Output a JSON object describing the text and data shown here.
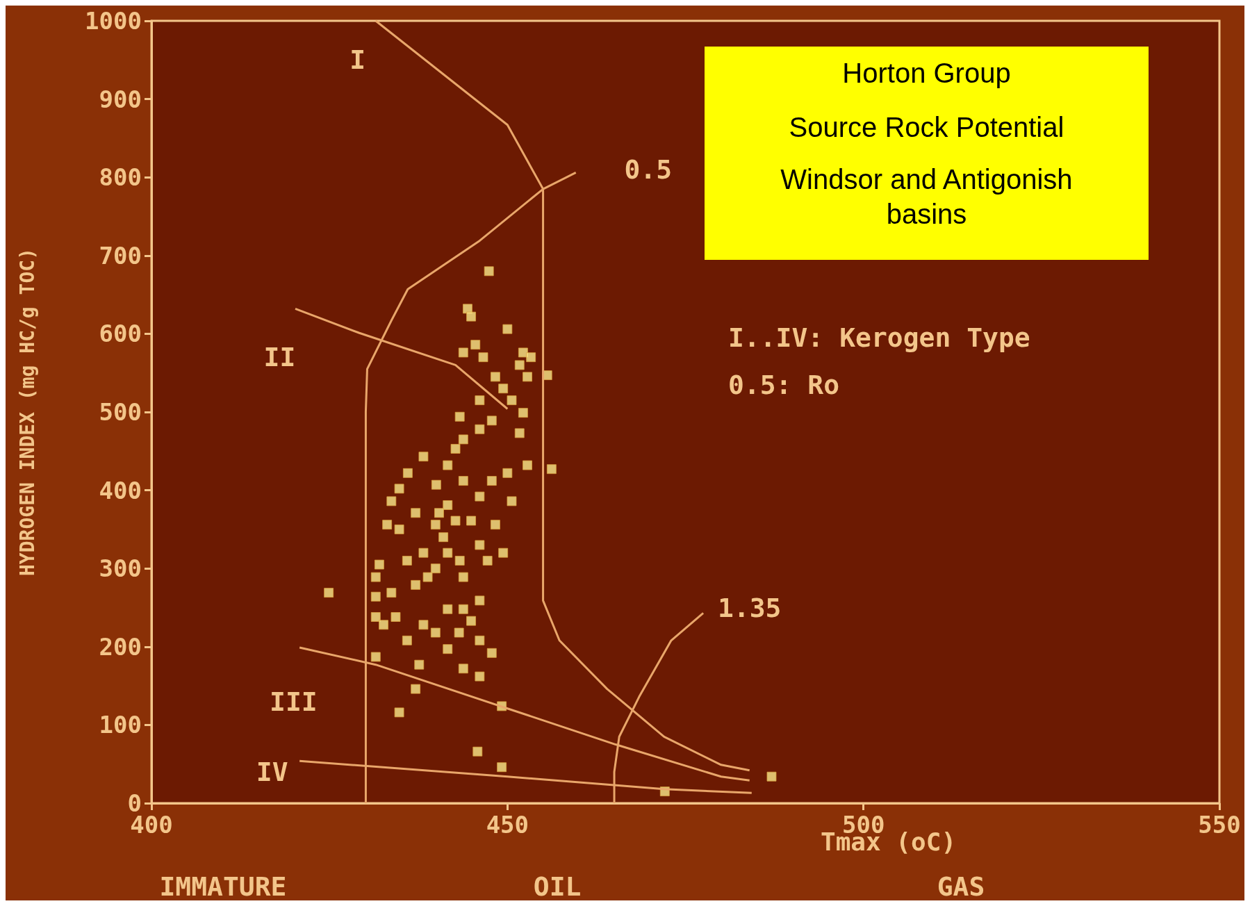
{
  "chart_data": {
    "type": "scatter",
    "title": "Horton Group",
    "subtitle": "Source Rock Potential",
    "xlabel": "Tmax (oC)",
    "ylabel": "HYDROGEN INDEX (mg HC/g TOC)",
    "xlim": [
      400,
      550
    ],
    "xticks": [
      400,
      450,
      500,
      550
    ],
    "ylim": [
      0,
      1000
    ],
    "yticks": [
      0,
      100,
      200,
      300,
      400,
      500,
      600,
      700,
      800,
      900,
      1000
    ],
    "grid": false,
    "series": [
      {
        "marker": "square",
        "color": "#fbe98a",
        "x": [
          447.4,
          444.4,
          444.9,
          450,
          445.5,
          443.8,
          446.6,
          452.2,
          453.3,
          451.7,
          455.6,
          448.3,
          449.4,
          452.8,
          452.2,
          443.3,
          446.1,
          447.8,
          443.8,
          442.7,
          438.2,
          451.7,
          452.8,
          456.2,
          450,
          436,
          434.8,
          433.7,
          440,
          443.8,
          446.1,
          450.6,
          441.6,
          437.1,
          433.1,
          439.9,
          448.3,
          446.1,
          441.6,
          438.2,
          449.4,
          432,
          439.9,
          443.8,
          437.1,
          433.7,
          424.9,
          431.5,
          446.1,
          441.6,
          431.5,
          438.2,
          444.9,
          435.9,
          443.2,
          446.1,
          441.6,
          447.8,
          431.5,
          437.6,
          443.8,
          446.1,
          437.1,
          434.8,
          449.2,
          445.8,
          449.2,
          472.1,
          487.1,
          440.4,
          442.7,
          441,
          443.3,
          438.8,
          435.9,
          434.8,
          444.9,
          447.2,
          434.3,
          432.6,
          439.9,
          443.8,
          431.5,
          447.8,
          441.6,
          446.1,
          450.6
        ],
        "values": [
          680,
          632,
          622,
          606,
          586,
          576,
          570,
          576,
          570,
          560,
          547,
          545,
          530,
          545,
          499,
          494,
          478,
          489,
          465,
          453,
          443,
          473,
          432,
          427,
          422,
          422,
          402,
          386,
          407,
          412,
          392,
          386,
          381,
          371,
          356,
          356,
          356,
          330,
          320,
          320,
          320,
          305,
          300,
          289,
          279,
          269,
          269,
          264,
          259,
          248,
          238,
          228,
          233,
          208,
          218,
          208,
          197,
          192,
          187,
          177,
          172,
          162,
          146,
          116,
          124,
          66,
          46,
          15,
          34,
          371,
          361,
          340,
          310,
          289,
          310,
          350,
          361,
          310,
          238,
          228,
          218,
          248,
          289,
          412,
          432,
          515,
          515
        ]
      },
      {
        "type": "line",
        "color": "#e9a66a",
        "x": [
          431.5,
          450,
          455,
          455,
          457.3,
          464,
          472,
          480,
          484
        ],
        "values": [
          1000,
          867,
          785,
          259,
          208,
          146,
          85,
          49,
          42
        ]
      },
      {
        "type": "line",
        "color": "#e9a66a",
        "x": [
          420.2,
          429.2,
          442.7,
          450
        ],
        "values": [
          632,
          601,
          560,
          504
        ]
      },
      {
        "type": "line",
        "color": "#e9a66a",
        "x": [
          420.8,
          431.5,
          450,
          465.2,
          480,
          484
        ],
        "values": [
          199,
          177,
          121,
          75,
          34,
          29
        ]
      },
      {
        "type": "line",
        "color": "#e9a66a",
        "x": [
          420.8,
          450,
          472,
          484.3
        ],
        "values": [
          54,
          34,
          18,
          13
        ]
      },
      {
        "type": "line",
        "color": "#e9a66a",
        "x": [
          459.6,
          455,
          446.1,
          436,
          433.7,
          430.3,
          430.1,
          430.1
        ],
        "values": [
          806,
          785,
          719,
          657,
          617,
          555,
          500,
          0
        ]
      },
      {
        "type": "line",
        "color": "#e9a66a",
        "x": [
          477.5,
          473,
          468.5,
          465.7,
          465,
          465
        ],
        "values": [
          243,
          208,
          136,
          85,
          40,
          0
        ]
      }
    ],
    "annotations": [
      "Windsor and Antigonish basins",
      "I..IV: Kerogen Type",
      "0.5: Ro",
      "I",
      "II",
      "III",
      "IV",
      "0.5",
      "1.35",
      "IMMATURE",
      "OIL",
      "GAS"
    ]
  }
}
